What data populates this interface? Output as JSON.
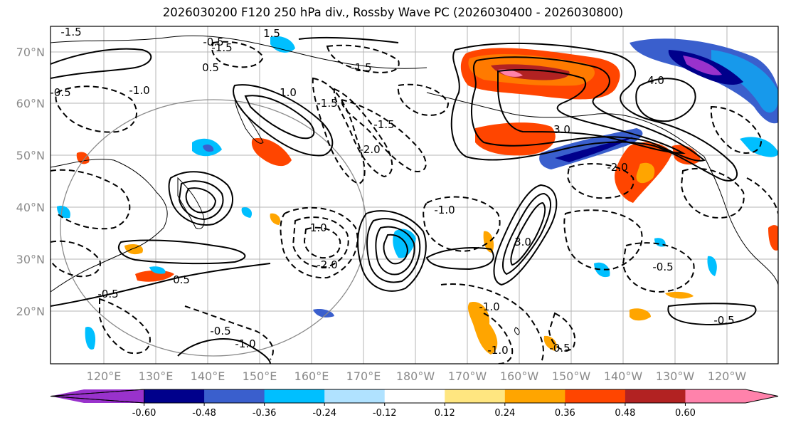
{
  "title": "2026030200 F120 250 hPa div., Rossby Wave PC (2026030400 - 2026030800)",
  "map": {
    "lat_labels": [
      "70°N",
      "60°N",
      "50°N",
      "40°N",
      "30°N",
      "20°N"
    ],
    "lon_labels": [
      "120°E",
      "130°E",
      "140°E",
      "150°E",
      "160°E",
      "170°E",
      "180°W",
      "170°W",
      "160°W",
      "150°W",
      "140°W",
      "130°W",
      "120°W"
    ],
    "contour_labels": [
      "-1.5",
      "-0.5",
      "-1.5",
      "1.5",
      "-1.5",
      "0.5",
      "-0.5",
      "-1.0",
      "1.0",
      "-1.5",
      "-1.5",
      "-2.0",
      "4.0",
      "3.0",
      "-2.0",
      "-1.0",
      "-1.0",
      "-2.0",
      "-1.0",
      "3.0",
      "-0.5",
      "-0.5",
      "0.5",
      "-0.5",
      "-1.0",
      "-0.5",
      "-1.0",
      "-0.5"
    ]
  },
  "colorbar": {
    "labels": [
      "-0.60",
      "-0.48",
      "-0.36",
      "-0.24",
      "-0.12",
      "0.12",
      "0.24",
      "0.36",
      "0.48",
      "0.60"
    ],
    "colors": [
      "#9932cc",
      "#00008b",
      "#3a5fcd",
      "#00bfff",
      "#b0e2ff",
      "#ffffff",
      "#ffe680",
      "#ffa500",
      "#ff4500",
      "#b22222",
      "#ff82ab"
    ]
  }
}
